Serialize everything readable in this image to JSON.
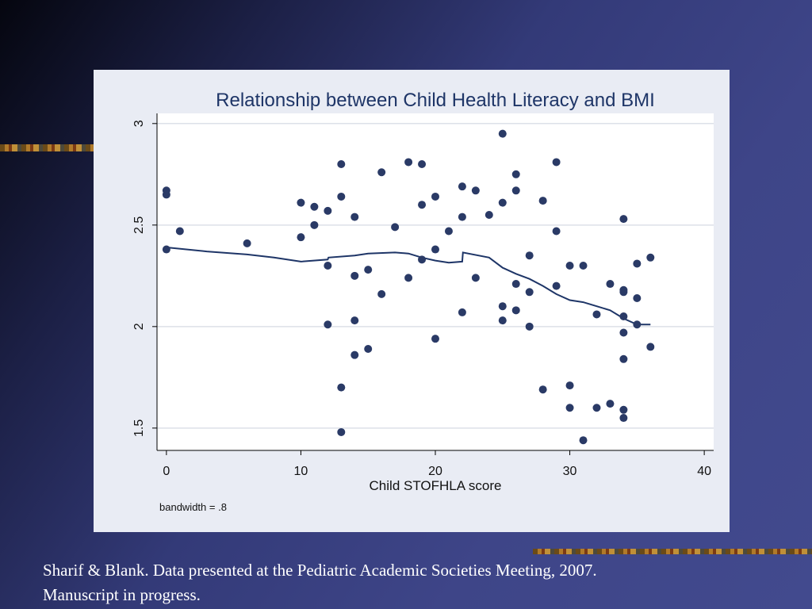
{
  "chart_data": {
    "type": "scatter",
    "title": "Relationship between Child Health Literacy and BMI",
    "xlabel": "Child STOFHLA score",
    "ylabel": "",
    "xlim": [
      -0.7,
      40.7
    ],
    "ylim": [
      1.39,
      3.05
    ],
    "xticks": [
      0,
      10,
      20,
      30,
      40
    ],
    "yticks": [
      1.5,
      2,
      2.5,
      3
    ],
    "xtick_labels": [
      "0",
      "10",
      "20",
      "30",
      "40"
    ],
    "ytick_labels": [
      "1.5",
      "2",
      "2.5",
      "3"
    ],
    "grid": true,
    "note": "bandwidth = .8",
    "marker_color": "#2a3a66",
    "line_color": "#1e3567",
    "points": [
      [
        0,
        2.67
      ],
      [
        0,
        2.65
      ],
      [
        0,
        2.38
      ],
      [
        1,
        2.47
      ],
      [
        6,
        2.41
      ],
      [
        10,
        2.61
      ],
      [
        10,
        2.44
      ],
      [
        11,
        2.59
      ],
      [
        11,
        2.5
      ],
      [
        12,
        2.57
      ],
      [
        12,
        2.3
      ],
      [
        12,
        2.01
      ],
      [
        13,
        2.8
      ],
      [
        13,
        2.64
      ],
      [
        13,
        1.7
      ],
      [
        13,
        1.48
      ],
      [
        14,
        2.54
      ],
      [
        14,
        2.25
      ],
      [
        14,
        2.03
      ],
      [
        14,
        1.86
      ],
      [
        15,
        2.28
      ],
      [
        15,
        1.89
      ],
      [
        16,
        2.76
      ],
      [
        16,
        2.16
      ],
      [
        17,
        2.49
      ],
      [
        18,
        2.81
      ],
      [
        18,
        2.24
      ],
      [
        19,
        2.8
      ],
      [
        19,
        2.6
      ],
      [
        19,
        2.33
      ],
      [
        20,
        2.64
      ],
      [
        20,
        2.38
      ],
      [
        20,
        1.94
      ],
      [
        21,
        2.47
      ],
      [
        22,
        2.69
      ],
      [
        22,
        2.54
      ],
      [
        22,
        2.07
      ],
      [
        23,
        2.67
      ],
      [
        23,
        2.24
      ],
      [
        24,
        2.55
      ],
      [
        25,
        2.95
      ],
      [
        25,
        2.61
      ],
      [
        25,
        2.1
      ],
      [
        25,
        2.03
      ],
      [
        26,
        2.75
      ],
      [
        26,
        2.67
      ],
      [
        26,
        2.21
      ],
      [
        26,
        2.08
      ],
      [
        27,
        2.35
      ],
      [
        27,
        2.17
      ],
      [
        27,
        2.0
      ],
      [
        28,
        2.62
      ],
      [
        28,
        1.69
      ],
      [
        29,
        2.81
      ],
      [
        29,
        2.47
      ],
      [
        29,
        2.2
      ],
      [
        30,
        2.3
      ],
      [
        30,
        1.71
      ],
      [
        30,
        1.6
      ],
      [
        31,
        2.3
      ],
      [
        31,
        1.44
      ],
      [
        32,
        2.06
      ],
      [
        32,
        1.6
      ],
      [
        33,
        2.21
      ],
      [
        33,
        1.62
      ],
      [
        34,
        2.53
      ],
      [
        34,
        2.18
      ],
      [
        34,
        2.17
      ],
      [
        34,
        2.05
      ],
      [
        34,
        1.97
      ],
      [
        34,
        1.84
      ],
      [
        34,
        1.59
      ],
      [
        34,
        1.55
      ],
      [
        35,
        2.31
      ],
      [
        35,
        2.14
      ],
      [
        35,
        2.01
      ],
      [
        36,
        2.34
      ],
      [
        36,
        1.9
      ]
    ],
    "smoother": [
      [
        0,
        2.39
      ],
      [
        3,
        2.37
      ],
      [
        6,
        2.355
      ],
      [
        8,
        2.34
      ],
      [
        10,
        2.32
      ],
      [
        12,
        2.33
      ],
      [
        12.05,
        2.34
      ],
      [
        14,
        2.35
      ],
      [
        15,
        2.36
      ],
      [
        17,
        2.365
      ],
      [
        18,
        2.36
      ],
      [
        19,
        2.34
      ],
      [
        20,
        2.325
      ],
      [
        21,
        2.315
      ],
      [
        22,
        2.32
      ],
      [
        22.05,
        2.365
      ],
      [
        24,
        2.34
      ],
      [
        25,
        2.29
      ],
      [
        26,
        2.26
      ],
      [
        27,
        2.235
      ],
      [
        28,
        2.2
      ],
      [
        29,
        2.16
      ],
      [
        30,
        2.13
      ],
      [
        31,
        2.12
      ],
      [
        32,
        2.1
      ],
      [
        33,
        2.08
      ],
      [
        34,
        2.04
      ],
      [
        35,
        2.01
      ],
      [
        36,
        2.01
      ]
    ]
  },
  "caption": {
    "line1": "Sharif & Blank. Data presented at the Pediatric Academic Societies Meeting, 2007.",
    "line2": "Manuscript in progress."
  }
}
